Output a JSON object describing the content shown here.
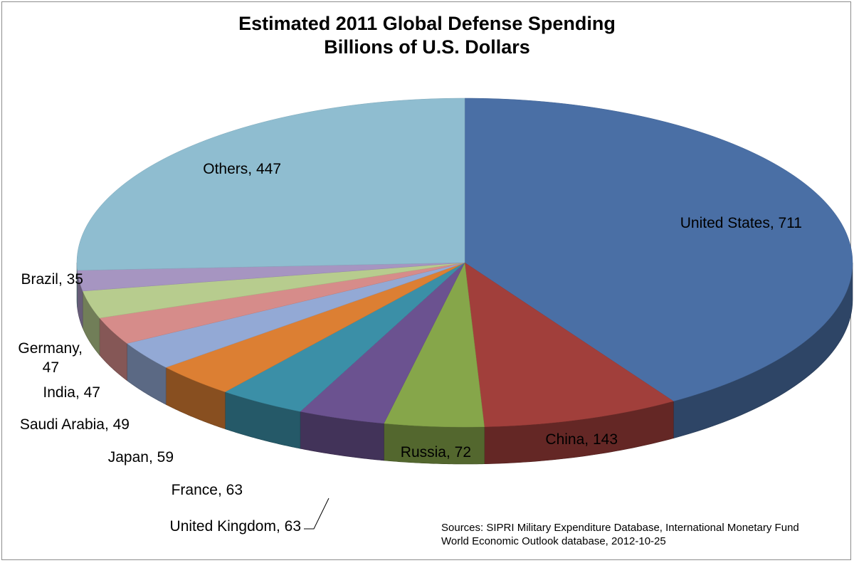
{
  "chart_data": {
    "type": "pie",
    "title": "Estimated  2011 Global Defense Spending",
    "subtitle": "Billions of U.S. Dollars",
    "slices": [
      {
        "label": "United States",
        "value": 711,
        "color": "#4A6FA5"
      },
      {
        "label": "China",
        "value": 143,
        "color": "#A13F3B"
      },
      {
        "label": "Russia",
        "value": 72,
        "color": "#86A64A"
      },
      {
        "label": "United Kingdom",
        "value": 63,
        "color": "#6B5290"
      },
      {
        "label": "France",
        "value": 63,
        "color": "#3B8FA7"
      },
      {
        "label": "Japan",
        "value": 59,
        "color": "#DC7F33"
      },
      {
        "label": "Saudi Arabia",
        "value": 49,
        "color": "#93A9D5"
      },
      {
        "label": "India",
        "value": 47,
        "color": "#D68C8A"
      },
      {
        "label": "Germany",
        "value": 47,
        "color": "#B7CC8E"
      },
      {
        "label": "Brazil",
        "value": 35,
        "color": "#A695C1"
      },
      {
        "label": "Others",
        "value": 447,
        "color": "#8FBDD0"
      }
    ],
    "data_label_format": "{label},  {value}",
    "source_lines": [
      "Sources: SIPRI Military Expenditure Database, International Monetary Fund",
      "World Economic Outlook database, 2012-10-25"
    ]
  }
}
